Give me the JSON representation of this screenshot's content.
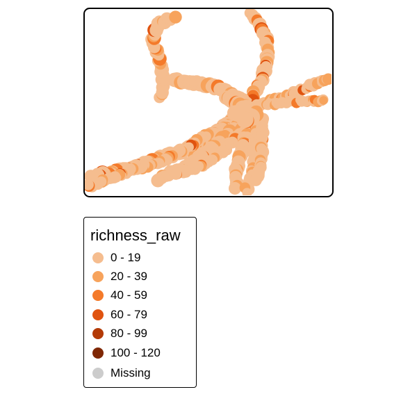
{
  "map": {
    "colors": {
      "c0": "#f5bd8f",
      "c1": "#f7a35c",
      "c2": "#f47a2a",
      "c3": "#e0530f",
      "c4": "#b33a06",
      "c5": "#7f2704",
      "missing": "#cccccc"
    }
  },
  "legend": {
    "title": "richness_raw",
    "items": [
      {
        "label": "0 - 19",
        "color": "#f5bd8f"
      },
      {
        "label": "20 - 39",
        "color": "#f7a35c"
      },
      {
        "label": "40 - 59",
        "color": "#f47a2a"
      },
      {
        "label": "60 - 79",
        "color": "#e0530f"
      },
      {
        "label": "80 - 99",
        "color": "#b33a06"
      },
      {
        "label": "100 - 120",
        "color": "#7f2704"
      },
      {
        "label": "Missing",
        "color": "#cccccc"
      }
    ]
  }
}
